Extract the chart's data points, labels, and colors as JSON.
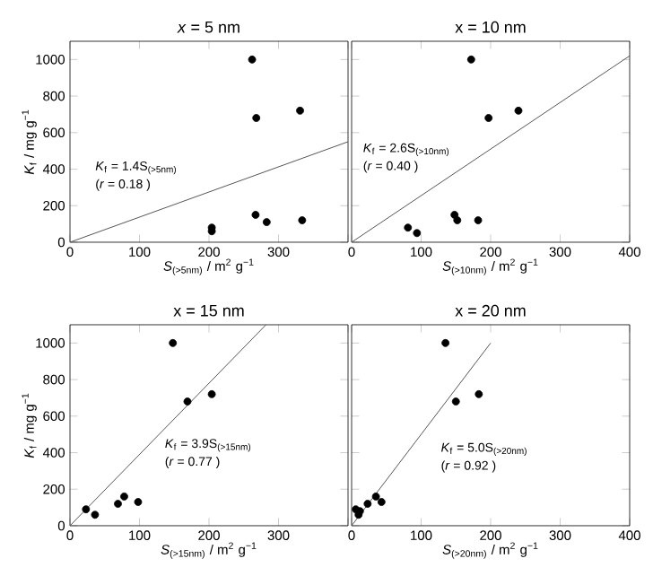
{
  "chart_data": [
    {
      "type": "scatter",
      "title": "*x* = 5 nm",
      "xlabel": "*S*$_{(>5nm)}$ / m$^{2}$ g$^{−1}$",
      "ylabel": "*K*$_{f}$ / mg g$^{−1}$",
      "marker": "circle",
      "xlim": [
        0,
        400
      ],
      "ylim": [
        0,
        1100
      ],
      "xticks": [
        0,
        100,
        200,
        300,
        {
          "value": 400,
          "label": null
        }
      ],
      "yticks": [
        0,
        200,
        400,
        600,
        800,
        1000
      ],
      "series": [
        {
          "color": "#000000",
          "x": [
            262,
            268,
            331,
            267,
            283,
            334,
            204,
            204
          ],
          "values": [
            1000,
            680,
            720,
            150,
            110,
            120,
            80,
            60
          ]
        },
        {
          "type": "line",
          "marker": "none",
          "color": "#555555",
          "x": [
            0,
            400
          ],
          "values": [
            0,
            550
          ]
        }
      ],
      "annotations": [
        "*K*$_{f}$ = 1.4S$_{(>5nm)}$",
        "(*r*  = 0.18 )"
      ]
    },
    {
      "type": "scatter",
      "title": "x = 10 nm",
      "xlabel": "*S*$_{(>10nm)}$ / m$^{2}$ g$^{−1}$",
      "marker": "circle",
      "tick_labels": "x",
      "xlim": [
        0,
        400
      ],
      "ylim": [
        0,
        1100
      ],
      "xticks": [
        0,
        100,
        200,
        300,
        400
      ],
      "yticks": [
        0,
        200,
        400,
        600,
        800,
        1000
      ],
      "series": [
        {
          "color": "#000000",
          "x": [
            172,
            197,
            240,
            148,
            152,
            182,
            81,
            94
          ],
          "values": [
            1000,
            680,
            720,
            150,
            120,
            120,
            80,
            50
          ]
        },
        {
          "type": "line",
          "marker": "none",
          "color": "#555555",
          "x": [
            0,
            400
          ],
          "values": [
            0,
            1020
          ]
        }
      ],
      "annotations": [
        "*K*$_{f}$ = 2.6S$_{(>10nm)}$",
        "(*r*  = 0.40 )"
      ]
    },
    {
      "type": "scatter",
      "title": "x = 15 nm",
      "xlabel": "*S*$_{(>15nm)}$ / m$^{2}$ g$^{−1}$",
      "ylabel": "*K*$_{f}$ / mg g$^{−1}$",
      "marker": "circle",
      "xlim": [
        0,
        400
      ],
      "ylim": [
        0,
        1100
      ],
      "xticks": [
        0,
        100,
        200,
        300,
        {
          "value": 400,
          "label": null
        }
      ],
      "yticks": [
        0,
        200,
        400,
        600,
        800,
        1000
      ],
      "series": [
        {
          "color": "#000000",
          "x": [
            148,
            169,
            204,
            23,
            36,
            69,
            78,
            98
          ],
          "values": [
            1000,
            680,
            720,
            90,
            60,
            120,
            160,
            130
          ]
        },
        {
          "type": "line",
          "marker": "none",
          "color": "#555555",
          "x": [
            0,
            282
          ],
          "values": [
            0,
            1100
          ]
        }
      ],
      "annotations": [
        "*K*$_{f}$ = 3.9S$_{(>15nm)}$",
        "(*r*  = 0.77 )"
      ]
    },
    {
      "type": "scatter",
      "title": "x = 20 nm",
      "xlabel": "*S*$_{(>20nm)}$ / m$^{2}$ g$^{−1}$",
      "marker": "circle",
      "tick_labels": "x",
      "xlim": [
        0,
        400
      ],
      "ylim": [
        0,
        1100
      ],
      "xticks": [
        0,
        100,
        200,
        300,
        400
      ],
      "yticks": [
        0,
        200,
        400,
        600,
        800,
        1000
      ],
      "series": [
        {
          "color": "#000000",
          "x": [
            135,
            150,
            183,
            6,
            10,
            23,
            35,
            43,
            12
          ],
          "values": [
            1000,
            680,
            720,
            90,
            60,
            120,
            160,
            130,
            80
          ]
        },
        {
          "type": "line",
          "marker": "none",
          "color": "#555555",
          "x": [
            0,
            200
          ],
          "values": [
            0,
            1000
          ]
        }
      ],
      "annotations": [
        "*K*$_{f}$ = 5.0S$_{(>20nm)}$",
        "(*r*  = 0.92 )"
      ]
    }
  ]
}
